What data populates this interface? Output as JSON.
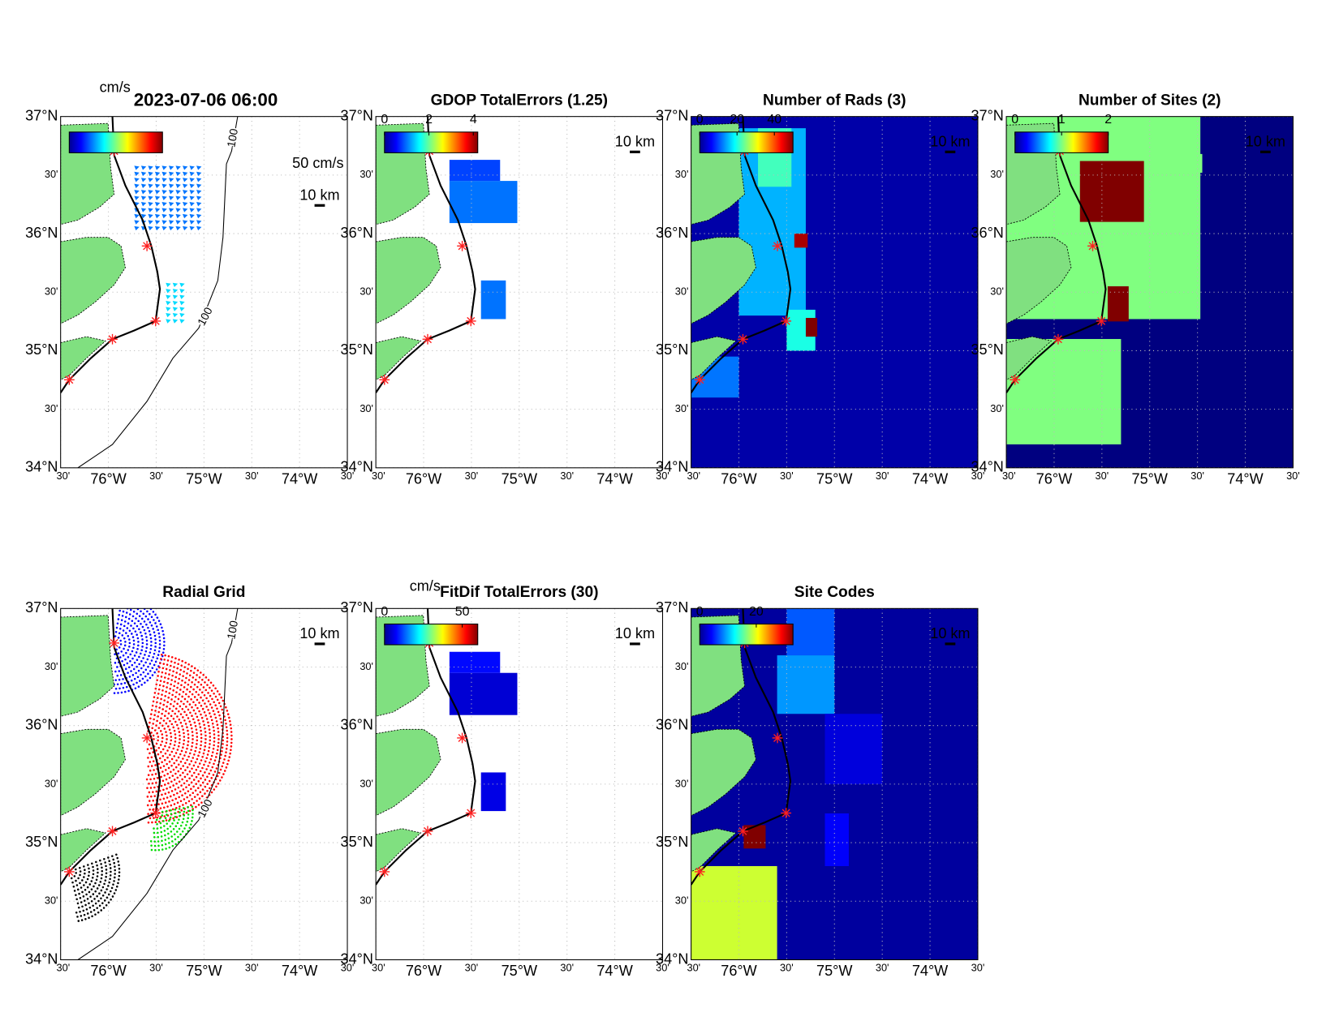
{
  "latlim": [
    34,
    37
  ],
  "lonlim": [
    -76.5,
    -73.5
  ],
  "lat_ticks": [
    {
      "value": 37,
      "label": "37°N"
    },
    {
      "value": 36.5,
      "label": "30'"
    },
    {
      "value": 36,
      "label": "36°N"
    },
    {
      "value": 35.5,
      "label": "30'"
    },
    {
      "value": 35,
      "label": "35°N"
    },
    {
      "value": 34.5,
      "label": "30'"
    },
    {
      "value": 34,
      "label": "34°N"
    }
  ],
  "lon_ticks": [
    {
      "value": -76.5,
      "label": "30'"
    },
    {
      "value": -76,
      "label": "76°W"
    },
    {
      "value": -75.5,
      "label": "30'"
    },
    {
      "value": -75,
      "label": "75°W"
    },
    {
      "value": -74.5,
      "label": "30'"
    },
    {
      "value": -74,
      "label": "74°W"
    },
    {
      "value": -73.5,
      "label": "30'"
    }
  ],
  "grid": true,
  "scale_label": "10 km",
  "contour_label": "100",
  "panels": [
    {
      "title": "2023-07-06 06:00",
      "unit": "cm/s",
      "clim": [
        0,
        50
      ],
      "cticks": [],
      "contour": true,
      "vector_label": "50 cm/s",
      "vectors": [
        {
          "lon": [
            -75.73,
            -75.04
          ],
          "lat": [
            36.58,
            36.06
          ],
          "value": 12
        },
        {
          "lon": [
            -75.4,
            -75.2
          ],
          "lat": [
            35.58,
            35.22
          ],
          "value": 17
        }
      ]
    },
    {
      "title": "GDOP TotalErrors (1.25)",
      "clim": [
        0,
        4.2
      ],
      "cticks": [
        0,
        2,
        4
      ],
      "fields": [
        {
          "lon": [
            -75.73,
            -75.02
          ],
          "lat": [
            36.45,
            36.09
          ],
          "value": 1
        },
        {
          "lon": [
            -75.73,
            -75.2
          ],
          "lat": [
            36.63,
            36.45
          ],
          "value": 0.8
        },
        {
          "lon": [
            -75.4,
            -75.14
          ],
          "lat": [
            35.6,
            35.27
          ],
          "value": 1
        }
      ]
    },
    {
      "title": "Number of Rads (3)",
      "clim": [
        0,
        50
      ],
      "cticks": [
        0,
        20,
        40
      ],
      "fields": [
        {
          "lon": [
            -76.5,
            -73.5
          ],
          "lat": [
            34,
            37
          ],
          "value": 2
        },
        {
          "lon": [
            -76.0,
            -75.3
          ],
          "lat": [
            36.9,
            35.3
          ],
          "value": 15
        },
        {
          "lon": [
            -75.8,
            -75.45
          ],
          "lat": [
            36.9,
            36.4
          ],
          "value": 22
        },
        {
          "lon": [
            -75.5,
            -75.2
          ],
          "lat": [
            35.35,
            35.0
          ],
          "value": 20
        },
        {
          "lon": [
            -75.42,
            -75.28
          ],
          "lat": [
            36.0,
            35.88
          ],
          "value": 48
        },
        {
          "lon": [
            -75.3,
            -75.18
          ],
          "lat": [
            35.28,
            35.12
          ],
          "value": 50
        },
        {
          "lon": [
            -76.5,
            -76.0
          ],
          "lat": [
            34.95,
            34.6
          ],
          "value": 12
        }
      ]
    },
    {
      "title": "Number of Sites (2)",
      "clim": [
        0,
        2
      ],
      "cticks": [
        0,
        1,
        2
      ],
      "fields": [
        {
          "lon": [
            -76.5,
            -73.5
          ],
          "lat": [
            34,
            37
          ],
          "value": 0
        },
        {
          "lon": [
            -76.5,
            -74.47
          ],
          "lat": [
            37,
            35.27
          ],
          "value": 1
        },
        {
          "lon": [
            -74.8,
            -74.45
          ],
          "lat": [
            36.68,
            36.52
          ],
          "value": 1
        },
        {
          "lon": [
            -76.5,
            -75.3
          ],
          "lat": [
            35.1,
            34.2
          ],
          "value": 1
        },
        {
          "lon": [
            -75.73,
            -75.06
          ],
          "lat": [
            36.62,
            36.1
          ],
          "value": 2
        },
        {
          "lon": [
            -75.44,
            -75.22
          ],
          "lat": [
            35.55,
            35.25
          ],
          "value": 2
        }
      ]
    },
    {
      "title": "Radial Grid",
      "cticks": [],
      "contour": true,
      "sites": [
        {
          "color": "#0000ff"
        },
        {
          "color": "#ff0000"
        },
        {
          "color": "#00dd00"
        },
        {
          "color": "#000000"
        }
      ]
    },
    {
      "title": "FitDif TotalErrors (30)",
      "unit": "cm/s",
      "clim": [
        0,
        60
      ],
      "cticks": [
        0,
        50
      ],
      "fields": [
        {
          "lon": [
            -75.73,
            -75.02
          ],
          "lat": [
            36.45,
            36.09
          ],
          "value": 5
        },
        {
          "lon": [
            -75.73,
            -75.2
          ],
          "lat": [
            36.63,
            36.45
          ],
          "value": 8
        },
        {
          "lon": [
            -75.4,
            -75.14
          ],
          "lat": [
            35.6,
            35.27
          ],
          "value": 6
        }
      ]
    },
    {
      "title": "Site Codes",
      "clim": [
        0,
        33
      ],
      "cticks": [
        0,
        20
      ],
      "fields": [
        {
          "lon": [
            -76.5,
            -73.5
          ],
          "lat": [
            34,
            37
          ],
          "value": 1
        },
        {
          "lon": [
            -75.5,
            -75.0
          ],
          "lat": [
            37,
            36.6
          ],
          "value": 7
        },
        {
          "lon": [
            -75.6,
            -75.0
          ],
          "lat": [
            36.6,
            36.1
          ],
          "value": 9
        },
        {
          "lon": [
            -75.1,
            -74.5
          ],
          "lat": [
            36.1,
            35.5
          ],
          "value": 3
        },
        {
          "lon": [
            -75.1,
            -74.85
          ],
          "lat": [
            35.25,
            34.8
          ],
          "value": 4
        },
        {
          "lon": [
            -76.5,
            -75.6
          ],
          "lat": [
            34.8,
            34.0
          ],
          "value": 19
        },
        {
          "lon": [
            -75.95,
            -75.72
          ],
          "lat": [
            35.15,
            34.95
          ],
          "value": 33
        }
      ]
    }
  ]
}
